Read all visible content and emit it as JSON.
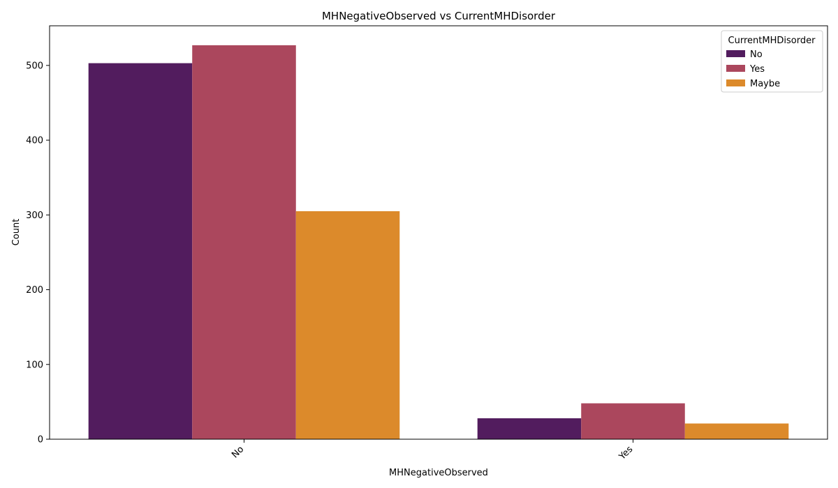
{
  "chart_data": {
    "type": "bar",
    "title": "MHNegativeObserved vs CurrentMHDisorder",
    "xlabel": "MHNegativeObserved",
    "ylabel": "Count",
    "categories": [
      "No",
      "Yes"
    ],
    "series": [
      {
        "name": "No",
        "color": "#521c5e",
        "values": [
          503,
          28
        ]
      },
      {
        "name": "Yes",
        "color": "#ab475d",
        "values": [
          527,
          48
        ]
      },
      {
        "name": "Maybe",
        "color": "#dc8a2b",
        "values": [
          305,
          21
        ]
      }
    ],
    "ylim": [
      0,
      553
    ],
    "yticks": [
      0,
      100,
      200,
      300,
      400,
      500
    ],
    "legend": {
      "title": "CurrentMHDisorder",
      "placement": "top-right"
    },
    "grid": false
  }
}
